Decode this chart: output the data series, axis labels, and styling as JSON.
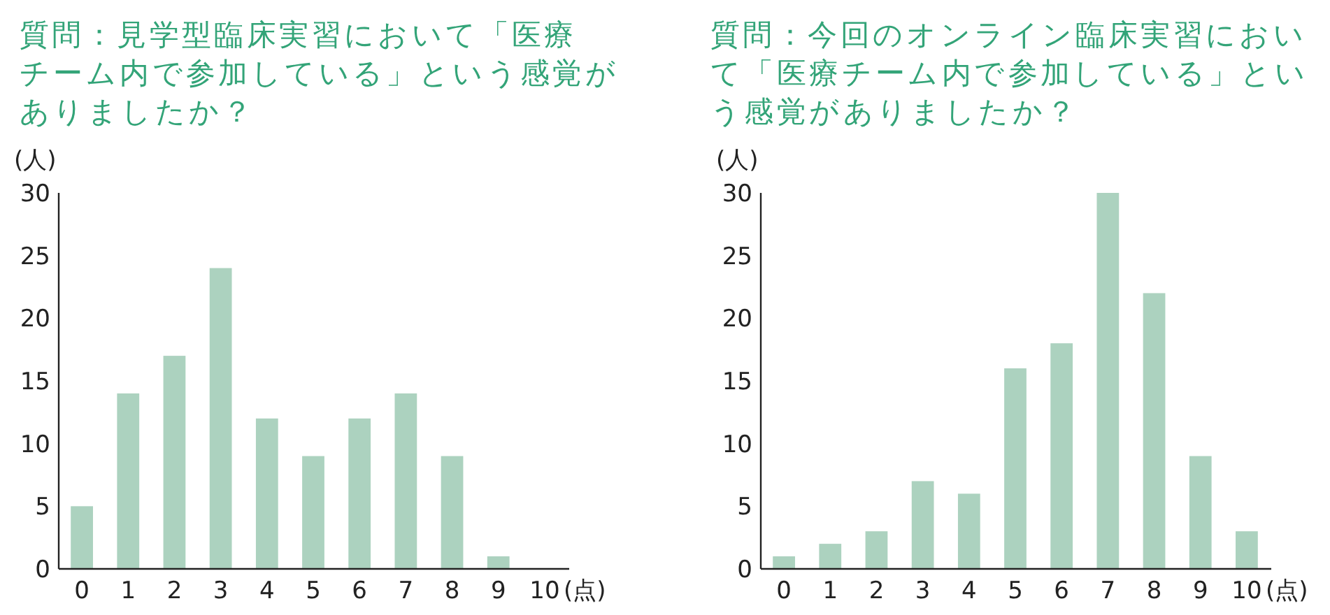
{
  "chart_data": [
    {
      "type": "bar",
      "title": "質問：見学型臨床実習において「医療チーム内で参加している」という感覚がありましたか？",
      "xlabel": "(点)",
      "ylabel": "(人)",
      "categories": [
        "0",
        "1",
        "2",
        "3",
        "4",
        "5",
        "6",
        "7",
        "8",
        "9",
        "10"
      ],
      "values": [
        5,
        14,
        17,
        24,
        12,
        9,
        12,
        14,
        9,
        1,
        0
      ],
      "color": "#acd2bf",
      "ylim": [
        0,
        30
      ],
      "yticks": [
        0,
        5,
        10,
        15,
        20,
        25,
        30
      ]
    },
    {
      "type": "bar",
      "title": "質問：今回のオンライン臨床実習において「医療チーム内で参加している」という感覚がありましたか？",
      "xlabel": "(点)",
      "ylabel": "(人)",
      "categories": [
        "0",
        "1",
        "2",
        "3",
        "4",
        "5",
        "6",
        "7",
        "8",
        "9",
        "10"
      ],
      "values": [
        1,
        2,
        3,
        7,
        6,
        16,
        18,
        30,
        22,
        9,
        3
      ],
      "color": "#acd2bf",
      "ylim": [
        0,
        30
      ],
      "yticks": [
        0,
        5,
        10,
        15,
        20,
        25,
        30
      ]
    }
  ]
}
